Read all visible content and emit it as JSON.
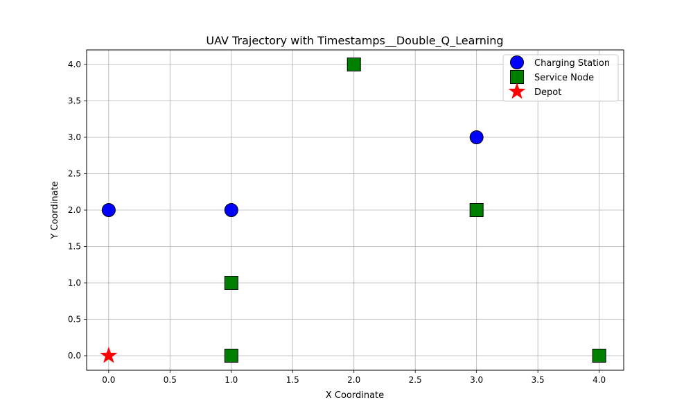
{
  "chart_data": {
    "type": "scatter",
    "title": "UAV Trajectory with Timestamps__Double_Q_Learning",
    "xlabel": "X Coordinate",
    "ylabel": "Y Coordinate",
    "xlim": [
      -0.18,
      4.2
    ],
    "ylim": [
      -0.2,
      4.2
    ],
    "xticks": [
      0.0,
      0.5,
      1.0,
      1.5,
      2.0,
      2.5,
      3.0,
      3.5,
      4.0
    ],
    "xtick_labels": [
      "0.0",
      "0.5",
      "1.0",
      "1.5",
      "2.0",
      "2.5",
      "3.0",
      "3.5",
      "4.0"
    ],
    "yticks": [
      0.0,
      0.5,
      1.0,
      1.5,
      2.0,
      2.5,
      3.0,
      3.5,
      4.0
    ],
    "ytick_labels": [
      "0.0",
      "0.5",
      "1.0",
      "1.5",
      "2.0",
      "2.5",
      "3.0",
      "3.5",
      "4.0"
    ],
    "grid": true,
    "legend_position": "top-right",
    "series": [
      {
        "name": "Charging Station",
        "marker": "circle",
        "color": "#0000ff",
        "edge_color": "#000000",
        "points": [
          [
            0,
            2
          ],
          [
            1,
            2
          ],
          [
            3,
            3
          ]
        ]
      },
      {
        "name": "Service Node",
        "marker": "square",
        "color": "#008000",
        "edge_color": "#000000",
        "points": [
          [
            1,
            0
          ],
          [
            1,
            1
          ],
          [
            2,
            4
          ],
          [
            3,
            2
          ],
          [
            4,
            0
          ]
        ]
      },
      {
        "name": "Depot",
        "marker": "star",
        "color": "#ff0000",
        "edge_color": "#ff0000",
        "points": [
          [
            0,
            0
          ]
        ]
      }
    ]
  }
}
